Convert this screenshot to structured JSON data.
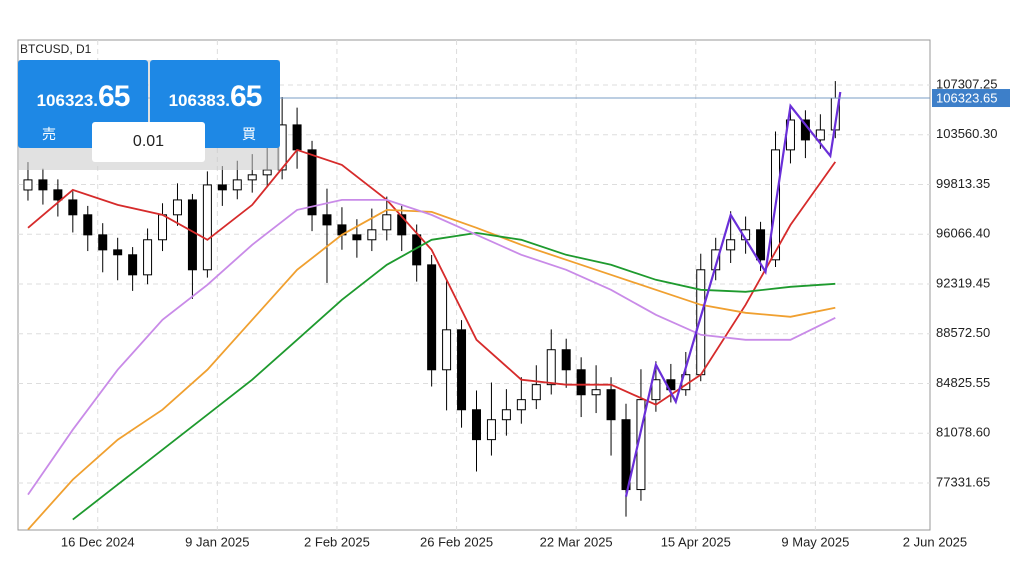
{
  "chart_data": {
    "type": "candlestick",
    "title": "BTCUSD, D1",
    "xlim": [
      "2024-11-30",
      "2025-06-01"
    ],
    "ylim": [
      73795,
      110693
    ],
    "xticks": [
      {
        "value": "2024-12-16",
        "label": "16 Dec 2024"
      },
      {
        "value": "2025-01-09",
        "label": "9 Jan 2025"
      },
      {
        "value": "2025-02-02",
        "label": "2 Feb 2025"
      },
      {
        "value": "2025-02-26",
        "label": "26 Feb 2025"
      },
      {
        "value": "2025-03-22",
        "label": "22 Mar 2025"
      },
      {
        "value": "2025-04-15",
        "label": "15 Apr 2025"
      },
      {
        "value": "2025-05-09",
        "label": "9 May 2025"
      },
      {
        "value": "2025-06-02",
        "label": "2 Jun 2025"
      }
    ],
    "yticks": [
      107307.25,
      {
        "value": 103560.3,
        "label": "103560.30"
      },
      99813.35,
      {
        "value": 96066.4,
        "label": "96066.40"
      },
      92319.45,
      {
        "value": 88572.5,
        "label": "88572.50"
      },
      84825.55,
      {
        "value": 81078.6,
        "label": "81078.60"
      },
      77331.65
    ],
    "grid": true,
    "current_price": 106323.65,
    "x": [
      "2024-12-02",
      "2024-12-05",
      "2024-12-08",
      "2024-12-11",
      "2024-12-14",
      "2024-12-17",
      "2024-12-20",
      "2024-12-23",
      "2024-12-26",
      "2024-12-29",
      "2025-01-01",
      "2025-01-04",
      "2025-01-07",
      "2025-01-10",
      "2025-01-13",
      "2025-01-16",
      "2025-01-19",
      "2025-01-22",
      "2025-01-25",
      "2025-01-28",
      "2025-01-31",
      "2025-02-03",
      "2025-02-06",
      "2025-02-09",
      "2025-02-12",
      "2025-02-15",
      "2025-02-18",
      "2025-02-21",
      "2025-02-24",
      "2025-02-27",
      "2025-03-02",
      "2025-03-05",
      "2025-03-08",
      "2025-03-11",
      "2025-03-14",
      "2025-03-17",
      "2025-03-20",
      "2025-03-23",
      "2025-03-26",
      "2025-03-29",
      "2025-04-01",
      "2025-04-04",
      "2025-04-07",
      "2025-04-10",
      "2025-04-13",
      "2025-04-16",
      "2025-04-19",
      "2025-04-22",
      "2025-04-25",
      "2025-04-28",
      "2025-05-01",
      "2025-05-04",
      "2025-05-07",
      "2025-05-10",
      "2025-05-13"
    ],
    "open": [
      99400,
      100160,
      99410,
      98650,
      97530,
      96020,
      94890,
      94520,
      93010,
      95650,
      97530,
      98650,
      93390,
      99780,
      99410,
      100160,
      100540,
      100910,
      104300,
      102420,
      97530,
      96770,
      96020,
      95650,
      96400,
      97530,
      96020,
      93760,
      85860,
      88870,
      82850,
      80600,
      82100,
      82850,
      83610,
      84740,
      87370,
      85860,
      83980,
      84360,
      82100,
      76840,
      83610,
      85110,
      84360,
      85490,
      93390,
      94890,
      95650,
      96400,
      94140,
      102420,
      104670,
      103170,
      103920
    ],
    "high": [
      101500,
      101000,
      100200,
      99300,
      98200,
      96900,
      95800,
      95100,
      96500,
      98400,
      99900,
      99100,
      100800,
      101200,
      101600,
      102100,
      102800,
      106400,
      105600,
      103100,
      99500,
      98100,
      97200,
      98000,
      98900,
      98200,
      96800,
      94500,
      92600,
      89600,
      84300,
      84900,
      84400,
      85300,
      86200,
      88900,
      88200,
      86800,
      86200,
      85300,
      83300,
      85900,
      86500,
      86300,
      87200,
      94600,
      95800,
      97800,
      97400,
      97000,
      103800,
      105700,
      105400,
      105100,
      107600
    ],
    "low": [
      98600,
      98300,
      97400,
      96200,
      94800,
      93200,
      92600,
      91800,
      92300,
      94800,
      96700,
      91200,
      92800,
      98200,
      98700,
      99200,
      99600,
      100200,
      101000,
      96300,
      92400,
      94900,
      94300,
      94800,
      95600,
      94800,
      92500,
      84600,
      82800,
      81500,
      78200,
      79400,
      80900,
      81800,
      82900,
      84000,
      84500,
      82300,
      82600,
      79400,
      74800,
      76000,
      82700,
      83400,
      83900,
      85000,
      92600,
      93900,
      94600,
      93300,
      93600,
      101400,
      101800,
      102500,
      103300
    ],
    "close": [
      100160,
      99410,
      98650,
      97530,
      96020,
      94890,
      94520,
      93010,
      95650,
      97530,
      98650,
      93390,
      99780,
      99410,
      100160,
      100540,
      100910,
      104300,
      102420,
      97530,
      96770,
      96020,
      95650,
      96400,
      97530,
      96020,
      93760,
      85860,
      88870,
      82850,
      80600,
      82100,
      82850,
      83610,
      84740,
      87370,
      85860,
      83980,
      84360,
      82100,
      76840,
      83610,
      85110,
      84360,
      85490,
      93390,
      94890,
      95650,
      96400,
      94140,
      102420,
      104670,
      103170,
      103920,
      106320
    ],
    "lines": [
      {
        "color": "#d62b2b",
        "x": [
          "2024-12-02",
          "2024-12-11",
          "2024-12-20",
          "2024-12-29",
          "2025-01-07",
          "2025-01-16",
          "2025-01-25",
          "2025-02-03",
          "2025-02-12",
          "2025-02-21",
          "2025-03-02",
          "2025-03-11",
          "2025-03-20",
          "2025-03-29",
          "2025-04-07",
          "2025-04-16",
          "2025-04-25",
          "2025-05-04",
          "2025-05-13"
        ],
        "values": [
          96548,
          99407,
          98278,
          97525,
          95645,
          98278,
          102416,
          101288,
          98654,
          94893,
          88121,
          85111,
          84735,
          84735,
          83230,
          85487,
          90754,
          96773,
          101513
        ]
      },
      {
        "color": "#f0a030",
        "x": [
          "2024-12-02",
          "2024-12-11",
          "2024-12-20",
          "2024-12-29",
          "2025-01-07",
          "2025-01-16",
          "2025-01-25",
          "2025-02-03",
          "2025-02-12",
          "2025-02-21",
          "2025-03-02",
          "2025-03-11",
          "2025-03-20",
          "2025-03-29",
          "2025-04-07",
          "2025-04-16",
          "2025-04-25",
          "2025-05-04",
          "2025-05-13"
        ],
        "values": [
          73825,
          77587,
          80597,
          82854,
          85863,
          89626,
          93388,
          96021,
          97902,
          97751,
          96548,
          95269,
          94140,
          93011,
          91883,
          90754,
          90152,
          89851,
          90529
        ]
      },
      {
        "color": "#1e9a2e",
        "x": [
          "2024-12-02",
          "2024-12-11",
          "2024-12-20",
          "2024-12-29",
          "2025-01-07",
          "2025-01-16",
          "2025-01-25",
          "2025-02-03",
          "2025-02-12",
          "2025-02-21",
          "2025-03-02",
          "2025-03-11",
          "2025-03-20",
          "2025-03-29",
          "2025-04-07",
          "2025-04-16",
          "2025-04-25",
          "2025-05-04",
          "2025-05-13"
        ],
        "values": [
          null,
          74577,
          77211,
          79844,
          82478,
          85111,
          88121,
          91131,
          93764,
          95645,
          96171,
          95645,
          94517,
          93764,
          92635,
          91883,
          91732,
          92108,
          92334
        ]
      },
      {
        "color": "#c98be8",
        "x": [
          "2024-12-02",
          "2024-12-11",
          "2024-12-20",
          "2024-12-29",
          "2025-01-07",
          "2025-01-16",
          "2025-01-25",
          "2025-02-03",
          "2025-02-12",
          "2025-02-21",
          "2025-03-02",
          "2025-03-11",
          "2025-03-20",
          "2025-03-29",
          "2025-04-07",
          "2025-04-16",
          "2025-04-25",
          "2025-05-04",
          "2025-05-13"
        ],
        "values": [
          76459,
          81349,
          85863,
          89626,
          92259,
          95269,
          97902,
          98654,
          98654,
          97525,
          96021,
          94517,
          93388,
          91883,
          90002,
          88497,
          88121,
          88121,
          89776
        ]
      },
      {
        "color": "#6a2fd8",
        "x": [
          "2025-04-01",
          "2025-04-07",
          "2025-04-11",
          "2025-04-22",
          "2025-04-29",
          "2025-05-04",
          "2025-05-12",
          "2025-05-14"
        ],
        "values": [
          76310,
          86240,
          83456,
          97526,
          93237,
          105727,
          101965,
          106780
        ]
      }
    ]
  },
  "trade_panel": {
    "sell": {
      "price_main": "106323.",
      "price_big": "65",
      "label": "売"
    },
    "buy": {
      "price_main": "106383.",
      "price_big": "65",
      "label": "買"
    },
    "volume": "0.01"
  }
}
